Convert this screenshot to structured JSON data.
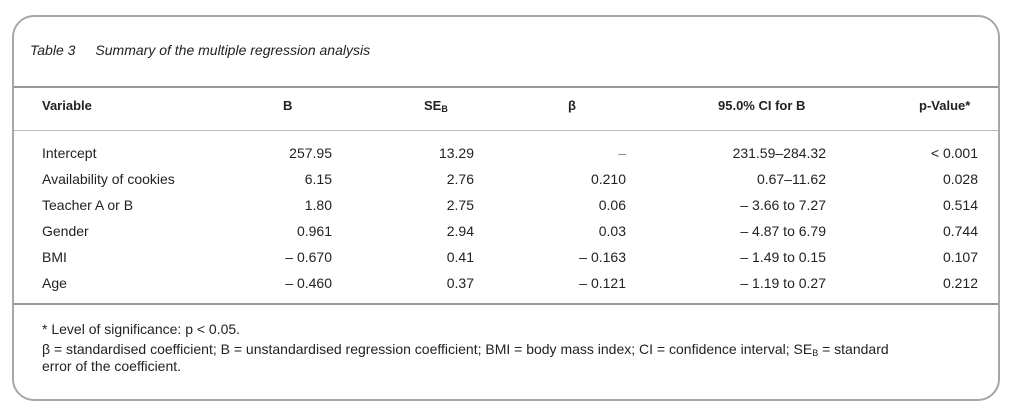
{
  "table": {
    "label": "Table 3",
    "title": "Summary of the multiple regression analysis",
    "headers": {
      "variable": "Variable",
      "b": "B",
      "se": "SE",
      "se_sub": "B",
      "beta": "β",
      "ci": "95.0% CI for B",
      "p": "p-Value*"
    },
    "rows": [
      {
        "variable": "Intercept",
        "b": "257.95",
        "se": "13.29",
        "beta": "–",
        "ci": "231.59–284.32",
        "p": "< 0.001"
      },
      {
        "variable": "Availability of cookies",
        "b": "6.15",
        "se": "2.76",
        "beta": "0.210",
        "ci": "0.67–11.62",
        "p": "0.028"
      },
      {
        "variable": "Teacher A or B",
        "b": "1.80",
        "se": "2.75",
        "beta": "0.06",
        "ci": "– 3.66 to 7.27",
        "p": "0.514"
      },
      {
        "variable": "Gender",
        "b": "0.961",
        "se": "2.94",
        "beta": "0.03",
        "ci": "– 4.87 to 6.79",
        "p": "0.744"
      },
      {
        "variable": "BMI",
        "b": "– 0.670",
        "se": "0.41",
        "beta": "– 0.163",
        "ci": "– 1.49 to 0.15",
        "p": "0.107"
      },
      {
        "variable": "Age",
        "b": "– 0.460",
        "se": "0.37",
        "beta": "– 0.121",
        "ci": "– 1.19 to 0.27",
        "p": "0.212"
      }
    ],
    "footnote_1": "* Level of significance: p < 0.05.",
    "footnote_2a": "β = standardised coefficient; B = unstandardised regression coefficient; BMI = body mass index; CI = confidence interval; SE",
    "footnote_2_sub": "B",
    "footnote_2b": " = standard",
    "footnote_3": "error of the coefficient."
  }
}
